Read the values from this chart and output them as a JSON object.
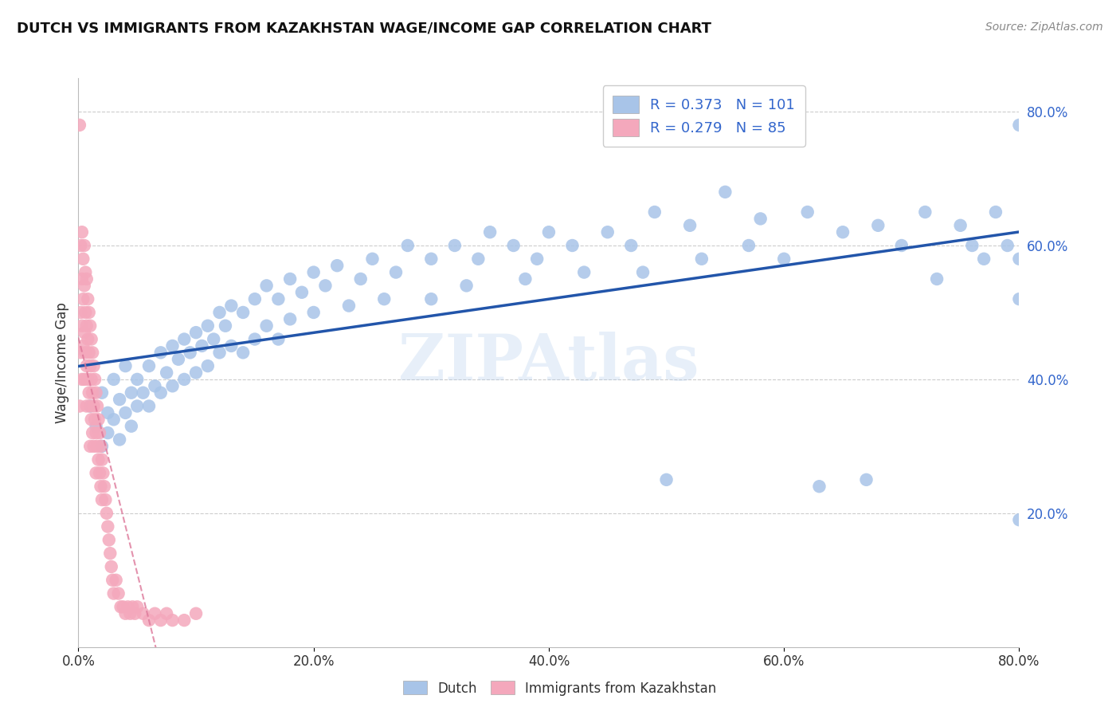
{
  "title": "DUTCH VS IMMIGRANTS FROM KAZAKHSTAN WAGE/INCOME GAP CORRELATION CHART",
  "source": "Source: ZipAtlas.com",
  "ylabel": "Wage/Income Gap",
  "blue_R": 0.373,
  "blue_N": 101,
  "pink_R": 0.279,
  "pink_N": 85,
  "blue_color": "#a8c4e8",
  "pink_color": "#f4a8bc",
  "blue_line_color": "#2255aa",
  "pink_line_color": "#dd7799",
  "watermark": "ZIPAtlas",
  "legend_dutch": "Dutch",
  "legend_immigrants": "Immigrants from Kazakhstan",
  "xlim": [
    0.0,
    0.8
  ],
  "ylim": [
    0.0,
    0.85
  ],
  "blue_scatter_x": [
    0.01,
    0.015,
    0.02,
    0.02,
    0.025,
    0.025,
    0.03,
    0.03,
    0.035,
    0.035,
    0.04,
    0.04,
    0.045,
    0.045,
    0.05,
    0.05,
    0.055,
    0.06,
    0.06,
    0.065,
    0.07,
    0.07,
    0.075,
    0.08,
    0.08,
    0.085,
    0.09,
    0.09,
    0.095,
    0.1,
    0.1,
    0.105,
    0.11,
    0.11,
    0.115,
    0.12,
    0.12,
    0.125,
    0.13,
    0.13,
    0.14,
    0.14,
    0.15,
    0.15,
    0.16,
    0.16,
    0.17,
    0.17,
    0.18,
    0.18,
    0.19,
    0.2,
    0.2,
    0.21,
    0.22,
    0.23,
    0.24,
    0.25,
    0.26,
    0.27,
    0.28,
    0.3,
    0.3,
    0.32,
    0.33,
    0.34,
    0.35,
    0.37,
    0.38,
    0.39,
    0.4,
    0.42,
    0.43,
    0.45,
    0.47,
    0.48,
    0.49,
    0.5,
    0.52,
    0.53,
    0.55,
    0.57,
    0.58,
    0.6,
    0.62,
    0.63,
    0.65,
    0.67,
    0.68,
    0.7,
    0.72,
    0.73,
    0.75,
    0.76,
    0.77,
    0.78,
    0.79,
    0.8,
    0.8,
    0.8,
    0.8
  ],
  "blue_scatter_y": [
    0.36,
    0.33,
    0.38,
    0.3,
    0.35,
    0.32,
    0.4,
    0.34,
    0.37,
    0.31,
    0.42,
    0.35,
    0.38,
    0.33,
    0.4,
    0.36,
    0.38,
    0.42,
    0.36,
    0.39,
    0.44,
    0.38,
    0.41,
    0.45,
    0.39,
    0.43,
    0.46,
    0.4,
    0.44,
    0.47,
    0.41,
    0.45,
    0.48,
    0.42,
    0.46,
    0.5,
    0.44,
    0.48,
    0.51,
    0.45,
    0.5,
    0.44,
    0.52,
    0.46,
    0.54,
    0.48,
    0.52,
    0.46,
    0.55,
    0.49,
    0.53,
    0.56,
    0.5,
    0.54,
    0.57,
    0.51,
    0.55,
    0.58,
    0.52,
    0.56,
    0.6,
    0.58,
    0.52,
    0.6,
    0.54,
    0.58,
    0.62,
    0.6,
    0.55,
    0.58,
    0.62,
    0.6,
    0.56,
    0.62,
    0.6,
    0.56,
    0.65,
    0.25,
    0.63,
    0.58,
    0.68,
    0.6,
    0.64,
    0.58,
    0.65,
    0.24,
    0.62,
    0.25,
    0.63,
    0.6,
    0.65,
    0.55,
    0.63,
    0.6,
    0.58,
    0.65,
    0.6,
    0.52,
    0.58,
    0.19,
    0.78
  ],
  "pink_scatter_x": [
    0.001,
    0.001,
    0.002,
    0.002,
    0.002,
    0.003,
    0.003,
    0.003,
    0.003,
    0.004,
    0.004,
    0.004,
    0.005,
    0.005,
    0.005,
    0.005,
    0.006,
    0.006,
    0.006,
    0.007,
    0.007,
    0.007,
    0.007,
    0.008,
    0.008,
    0.008,
    0.009,
    0.009,
    0.009,
    0.01,
    0.01,
    0.01,
    0.01,
    0.011,
    0.011,
    0.011,
    0.012,
    0.012,
    0.012,
    0.013,
    0.013,
    0.013,
    0.014,
    0.014,
    0.015,
    0.015,
    0.015,
    0.016,
    0.016,
    0.017,
    0.017,
    0.018,
    0.018,
    0.019,
    0.019,
    0.02,
    0.02,
    0.021,
    0.022,
    0.023,
    0.024,
    0.025,
    0.026,
    0.027,
    0.028,
    0.029,
    0.03,
    0.032,
    0.034,
    0.036,
    0.038,
    0.04,
    0.042,
    0.044,
    0.046,
    0.048,
    0.05,
    0.055,
    0.06,
    0.065,
    0.07,
    0.075,
    0.08,
    0.09,
    0.1
  ],
  "pink_scatter_y": [
    0.78,
    0.36,
    0.6,
    0.5,
    0.44,
    0.62,
    0.55,
    0.48,
    0.4,
    0.58,
    0.52,
    0.45,
    0.6,
    0.54,
    0.47,
    0.4,
    0.56,
    0.5,
    0.44,
    0.55,
    0.48,
    0.42,
    0.36,
    0.52,
    0.46,
    0.4,
    0.5,
    0.44,
    0.38,
    0.48,
    0.42,
    0.36,
    0.3,
    0.46,
    0.4,
    0.34,
    0.44,
    0.38,
    0.32,
    0.42,
    0.36,
    0.3,
    0.4,
    0.34,
    0.38,
    0.32,
    0.26,
    0.36,
    0.3,
    0.34,
    0.28,
    0.32,
    0.26,
    0.3,
    0.24,
    0.28,
    0.22,
    0.26,
    0.24,
    0.22,
    0.2,
    0.18,
    0.16,
    0.14,
    0.12,
    0.1,
    0.08,
    0.1,
    0.08,
    0.06,
    0.06,
    0.05,
    0.06,
    0.05,
    0.06,
    0.05,
    0.06,
    0.05,
    0.04,
    0.05,
    0.04,
    0.05,
    0.04,
    0.04,
    0.05
  ]
}
